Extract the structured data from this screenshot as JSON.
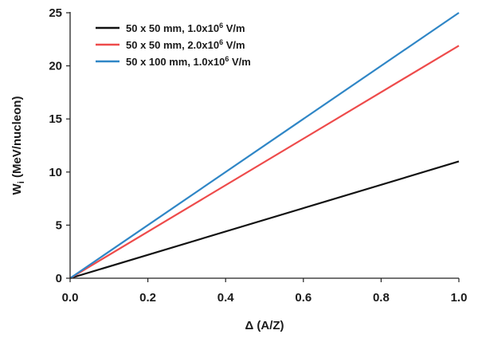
{
  "chart_data": {
    "type": "line",
    "xlabel": "Δ (A/Z)",
    "ylabel_main": "W",
    "ylabel_sub": "i",
    "ylabel_rest": " (MeV/nucleon)",
    "xlim": [
      0.0,
      1.0
    ],
    "ylim": [
      0,
      25
    ],
    "x_ticks": [
      "0.0",
      "0.2",
      "0.4",
      "0.6",
      "0.8",
      "1.0"
    ],
    "y_ticks": [
      "0",
      "5",
      "10",
      "15",
      "20",
      "25"
    ],
    "grid": false,
    "legend_position": "top-left",
    "series": [
      {
        "name_prefix": "50 x 50 mm, 1.0x10",
        "name_exp": "6",
        "name_suffix": " V/m",
        "color": "#111111",
        "x": [
          0.0,
          1.0
        ],
        "y": [
          0,
          11.0
        ]
      },
      {
        "name_prefix": "50 x 50 mm, 2.0x10",
        "name_exp": "6",
        "name_suffix": " V/m",
        "color": "#ee4b4b",
        "x": [
          0.0,
          1.0
        ],
        "y": [
          0,
          21.9
        ]
      },
      {
        "name_prefix": "50 x 100 mm, 1.0x10",
        "name_exp": "6",
        "name_suffix": " V/m",
        "color": "#2f86c6",
        "x": [
          0.0,
          1.0
        ],
        "y": [
          0,
          25.0
        ]
      }
    ]
  }
}
